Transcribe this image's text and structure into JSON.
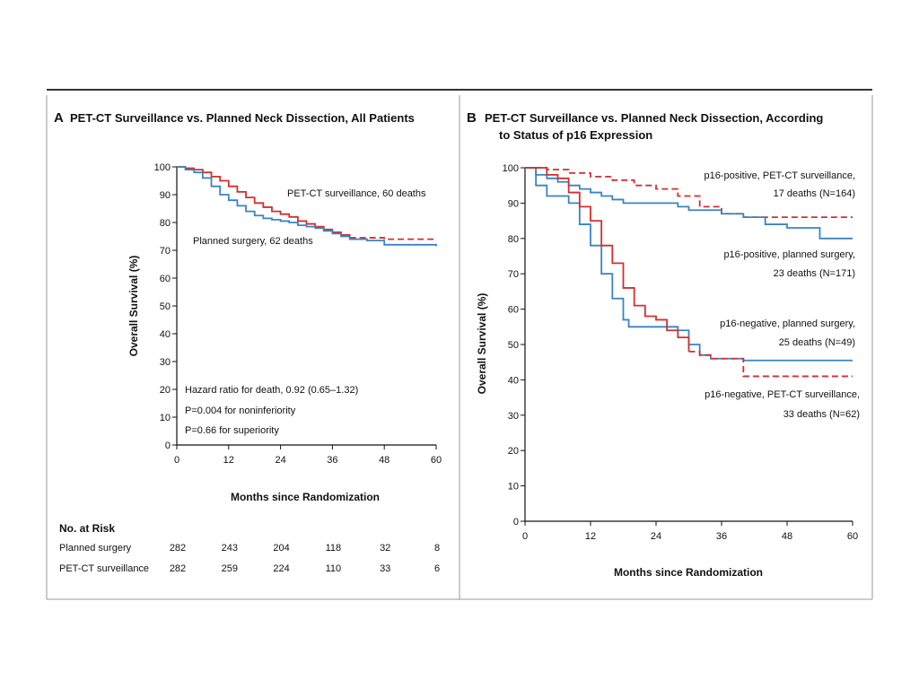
{
  "colors": {
    "red": "#d32f2f",
    "blue": "#3b83c4",
    "rule": "#333333",
    "border": "#999999"
  },
  "chart_data": [
    {
      "type": "line",
      "panel_letter": "A",
      "title_lines": [
        "PET-CT Surveillance vs. Planned Neck Dissection, All Patients"
      ],
      "xlabel": "Months since Randomization",
      "ylabel": "Overall Survival (%)",
      "xlim": [
        0,
        60
      ],
      "ylim": [
        0,
        100
      ],
      "x_ticks": [
        "0",
        "12",
        "24",
        "36",
        "48",
        "60"
      ],
      "y_ticks": [
        "0",
        "10",
        "20",
        "30",
        "40",
        "50",
        "60",
        "70",
        "80",
        "90",
        "100"
      ],
      "series": [
        {
          "name": "PET-CT surveillance, 60 deaths",
          "color": "red",
          "dashed_tail_from": 40,
          "points": [
            [
              0,
              100
            ],
            [
              2,
              99.5
            ],
            [
              4,
              99
            ],
            [
              6,
              98
            ],
            [
              8,
              96.5
            ],
            [
              10,
              95
            ],
            [
              12,
              93
            ],
            [
              14,
              91
            ],
            [
              16,
              89
            ],
            [
              18,
              87
            ],
            [
              20,
              85.5
            ],
            [
              22,
              84
            ],
            [
              24,
              83
            ],
            [
              26,
              82
            ],
            [
              28,
              80.5
            ],
            [
              30,
              79.5
            ],
            [
              32,
              78.5
            ],
            [
              34,
              77.5
            ],
            [
              36,
              76.5
            ],
            [
              38,
              75.5
            ],
            [
              40,
              74.5
            ],
            [
              48,
              74
            ],
            [
              60,
              74
            ]
          ]
        },
        {
          "name": "Planned surgery, 62 deaths",
          "color": "blue",
          "points": [
            [
              0,
              100
            ],
            [
              2,
              99
            ],
            [
              4,
              98
            ],
            [
              6,
              96
            ],
            [
              8,
              93
            ],
            [
              10,
              90
            ],
            [
              12,
              88
            ],
            [
              14,
              86
            ],
            [
              16,
              84
            ],
            [
              18,
              82.5
            ],
            [
              20,
              81.5
            ],
            [
              22,
              81
            ],
            [
              24,
              80.5
            ],
            [
              26,
              80
            ],
            [
              28,
              79
            ],
            [
              30,
              78.5
            ],
            [
              32,
              78
            ],
            [
              34,
              77
            ],
            [
              36,
              76
            ],
            [
              38,
              75
            ],
            [
              40,
              74
            ],
            [
              44,
              73.5
            ],
            [
              48,
              72
            ],
            [
              60,
              71.5
            ]
          ]
        }
      ],
      "annotations": [
        "Hazard ratio for death, 0.92 (0.65–1.32)",
        "P=0.004 for noninferiority",
        "P=0.66 for superiority"
      ],
      "risk_table": {
        "header": "No. at Risk",
        "rows": [
          {
            "label": "Planned surgery",
            "values": [
              "282",
              "243",
              "204",
              "118",
              "32",
              "8"
            ]
          },
          {
            "label": "PET-CT surveillance",
            "values": [
              "282",
              "259",
              "224",
              "110",
              "33",
              "6"
            ]
          }
        ]
      }
    },
    {
      "type": "line",
      "panel_letter": "B",
      "title_lines": [
        "PET-CT Surveillance vs. Planned Neck Dissection, According",
        "to Status of p16 Expression"
      ],
      "xlabel": "Months since Randomization",
      "ylabel": "Overall Survival (%)",
      "xlim": [
        0,
        60
      ],
      "ylim": [
        0,
        100
      ],
      "x_ticks": [
        "0",
        "12",
        "24",
        "36",
        "48",
        "60"
      ],
      "y_ticks": [
        "0",
        "10",
        "20",
        "30",
        "40",
        "50",
        "60",
        "70",
        "80",
        "90",
        "100"
      ],
      "series": [
        {
          "label_lines": [
            "p16-positive, PET-CT surveillance,",
            "17 deaths (N=164)"
          ],
          "color": "red",
          "dashed": true,
          "points": [
            [
              0,
              100
            ],
            [
              4,
              99.5
            ],
            [
              8,
              98.5
            ],
            [
              12,
              97.5
            ],
            [
              16,
              96.5
            ],
            [
              20,
              95
            ],
            [
              24,
              94
            ],
            [
              28,
              92
            ],
            [
              32,
              89
            ],
            [
              36,
              87
            ],
            [
              40,
              86
            ],
            [
              60,
              86
            ]
          ]
        },
        {
          "label_lines": [
            "p16-positive, planned surgery,",
            "23 deaths (N=171)"
          ],
          "color": "blue",
          "points": [
            [
              0,
              100
            ],
            [
              2,
              98
            ],
            [
              4,
              97
            ],
            [
              6,
              96
            ],
            [
              8,
              95
            ],
            [
              10,
              94
            ],
            [
              12,
              93
            ],
            [
              14,
              92
            ],
            [
              16,
              91
            ],
            [
              18,
              90
            ],
            [
              24,
              90
            ],
            [
              28,
              89
            ],
            [
              30,
              88
            ],
            [
              36,
              87
            ],
            [
              40,
              86
            ],
            [
              44,
              84
            ],
            [
              48,
              83
            ],
            [
              54,
              80
            ],
            [
              60,
              80
            ]
          ]
        },
        {
          "label_lines": [
            "p16-negative, planned surgery,",
            "25 deaths (N=49)"
          ],
          "color": "blue",
          "points": [
            [
              0,
              100
            ],
            [
              2,
              95
            ],
            [
              4,
              92
            ],
            [
              6,
              92
            ],
            [
              8,
              90
            ],
            [
              10,
              84
            ],
            [
              12,
              78
            ],
            [
              14,
              70
            ],
            [
              16,
              63
            ],
            [
              18,
              57
            ],
            [
              19,
              55
            ],
            [
              24,
              55
            ],
            [
              28,
              54
            ],
            [
              30,
              50
            ],
            [
              32,
              47
            ],
            [
              34,
              46
            ],
            [
              36,
              46
            ],
            [
              40,
              45.5
            ],
            [
              60,
              45.5
            ]
          ]
        },
        {
          "label_lines": [
            "p16-negative, PET-CT surveillance,",
            "33 deaths (N=62)"
          ],
          "color": "red",
          "dashed_tail_from": 30,
          "points": [
            [
              0,
              100
            ],
            [
              4,
              98
            ],
            [
              6,
              97
            ],
            [
              8,
              93
            ],
            [
              10,
              89
            ],
            [
              12,
              85
            ],
            [
              14,
              78
            ],
            [
              16,
              73
            ],
            [
              18,
              66
            ],
            [
              20,
              61
            ],
            [
              22,
              58
            ],
            [
              24,
              57
            ],
            [
              26,
              54
            ],
            [
              28,
              52
            ],
            [
              30,
              48
            ],
            [
              32,
              47
            ],
            [
              34,
              46
            ],
            [
              36,
              46
            ],
            [
              40,
              41
            ],
            [
              60,
              41
            ]
          ]
        }
      ]
    }
  ]
}
